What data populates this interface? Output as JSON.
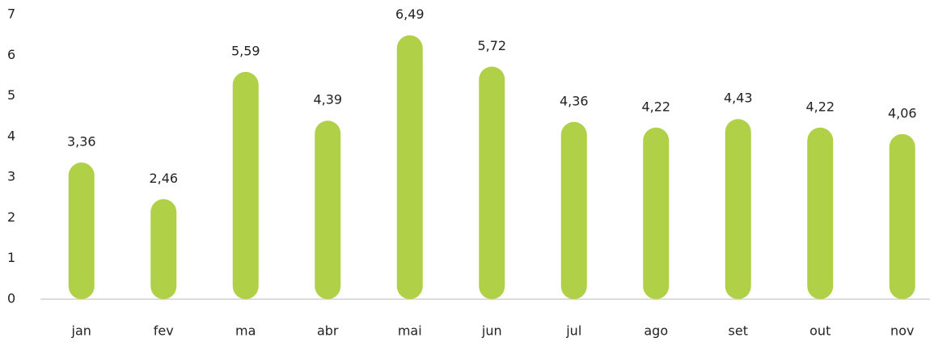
{
  "chart_data": {
    "type": "bar",
    "categories": [
      "jan",
      "fev",
      "ma",
      "abr",
      "mai",
      "jun",
      "jul",
      "ago",
      "set",
      "out",
      "nov"
    ],
    "values": [
      3.36,
      2.46,
      5.59,
      4.39,
      6.49,
      5.72,
      4.36,
      4.22,
      4.43,
      4.22,
      4.06
    ],
    "value_labels": [
      "3,36",
      "2,46",
      "5,59",
      "4,39",
      "6,49",
      "5,72",
      "4,36",
      "4,22",
      "4,43",
      "4,22",
      "4,06"
    ],
    "color": "#b0d147",
    "ylim": [
      0,
      7
    ],
    "yticks": [
      0,
      1,
      2,
      3,
      4,
      5,
      6,
      7
    ],
    "grid": false
  }
}
